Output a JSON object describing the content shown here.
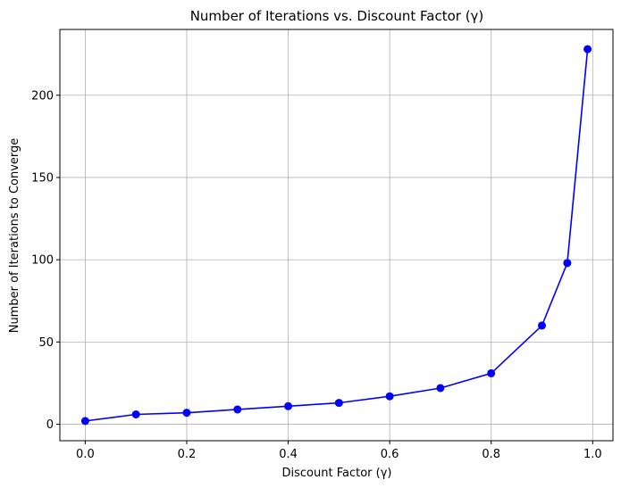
{
  "chart_data": {
    "type": "line",
    "title": "Number of Iterations vs. Discount Factor (γ)",
    "xlabel": "Discount Factor (γ)",
    "ylabel": "Number of Iterations to Converge",
    "xlim": [
      -0.05,
      1.04
    ],
    "ylim": [
      -10,
      240
    ],
    "xticks": [
      0.0,
      0.2,
      0.4,
      0.6,
      0.8,
      1.0
    ],
    "xtick_labels": [
      "0.0",
      "0.2",
      "0.4",
      "0.6",
      "0.8",
      "1.0"
    ],
    "yticks": [
      0,
      50,
      100,
      150,
      200
    ],
    "ytick_labels": [
      "0",
      "50",
      "100",
      "150",
      "200"
    ],
    "grid": true,
    "series": [
      {
        "color": "#0000ff",
        "marker": "circle",
        "x": [
          0.0,
          0.1,
          0.2,
          0.3,
          0.4,
          0.5,
          0.6,
          0.7,
          0.8,
          0.9,
          0.95,
          0.99
        ],
        "y": [
          2,
          6,
          7,
          9,
          11,
          13,
          17,
          22,
          31,
          60,
          98,
          228
        ]
      }
    ]
  }
}
